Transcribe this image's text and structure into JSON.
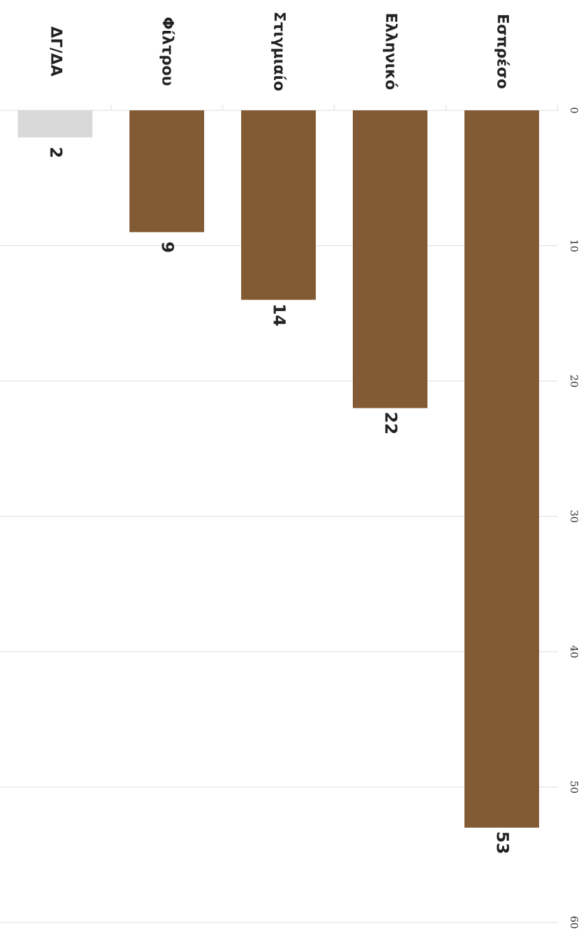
{
  "chart_data": {
    "type": "bar",
    "orientation": "rotated-90",
    "categories": [
      "Εσπρέσο",
      "Ελληνικό",
      "Στιγμιαίο",
      "Φίλτρου",
      "ΔΓ/ΔΑ"
    ],
    "values": [
      53,
      22,
      14,
      9,
      2
    ],
    "value_labels": [
      "53",
      "22",
      "14",
      "9",
      "2"
    ],
    "axis_ticks": [
      "0",
      "10",
      "20",
      "30",
      "40",
      "50",
      "60"
    ],
    "ylim": [
      0,
      60
    ],
    "grid": true,
    "title": "",
    "xlabel": "",
    "ylabel": "",
    "colors": {
      "main": "#825b35",
      "na": "#d9d9d9",
      "grid": "#dddddd",
      "text": "#222222"
    }
  }
}
